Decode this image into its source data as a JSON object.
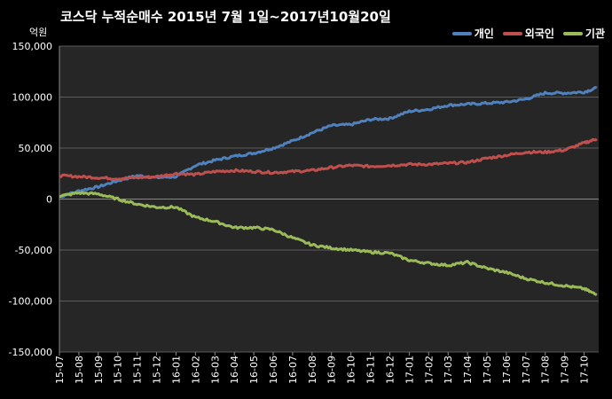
{
  "chart_data": {
    "type": "line",
    "title": "코스닥  누적순매수 2015년 7월 1일~2017년10월20일",
    "ylabel": "억원",
    "ylim": [
      -150000,
      150000
    ],
    "yticks": [
      150000,
      100000,
      50000,
      0,
      -50000,
      -100000,
      -150000
    ],
    "ytick_labels": [
      "150,000",
      "100,000",
      "50,000",
      "0",
      "-50,000",
      "-100,000",
      "-150,000"
    ],
    "grid": true,
    "legend_position": "top-right",
    "background": "#262626",
    "categories": [
      "15-07",
      "15-08",
      "15-09",
      "15-10",
      "15-11",
      "15-12",
      "16-01",
      "16-02",
      "16-03",
      "16-04",
      "16-05",
      "16-06",
      "16-07",
      "16-08",
      "16-09",
      "16-10",
      "16-11",
      "16-12",
      "17-01",
      "17-02",
      "17-03",
      "17-04",
      "17-05",
      "17-06",
      "17-07",
      "17-08",
      "17-09",
      "17-10"
    ],
    "x": [
      0,
      1,
      2,
      3,
      4,
      5,
      6,
      7,
      8,
      9,
      10,
      11,
      12,
      13,
      14,
      15,
      16,
      17,
      18,
      19,
      20,
      21,
      22,
      23,
      24,
      25,
      26,
      27,
      27.65
    ],
    "series": [
      {
        "name": "개인",
        "color": "#4f81bd",
        "values": [
          2000,
          8000,
          12000,
          18000,
          23000,
          21000,
          22000,
          33000,
          38000,
          42000,
          45000,
          50000,
          57000,
          65000,
          72000,
          73000,
          78000,
          79000,
          86000,
          88000,
          92000,
          93000,
          94000,
          95000,
          98000,
          104000,
          104000,
          105000,
          109000
        ]
      },
      {
        "name": "외국인",
        "color": "#c0504d",
        "values": [
          23000,
          22000,
          21000,
          20000,
          21000,
          22000,
          25000,
          24000,
          27000,
          28000,
          27000,
          26000,
          27000,
          28000,
          31000,
          33000,
          32000,
          33000,
          34000,
          34000,
          35000,
          36000,
          40000,
          43000,
          46000,
          46000,
          48000,
          55000,
          59000
        ]
      },
      {
        "name": "기관",
        "color": "#9bbb59",
        "values": [
          3000,
          6000,
          5000,
          0,
          -5000,
          -8000,
          -8000,
          -18000,
          -22000,
          -28000,
          -28000,
          -30000,
          -38000,
          -45000,
          -48000,
          -50000,
          -52000,
          -53000,
          -60000,
          -63000,
          -65000,
          -62000,
          -68000,
          -72000,
          -78000,
          -82000,
          -85000,
          -88000,
          -94000
        ]
      }
    ]
  }
}
